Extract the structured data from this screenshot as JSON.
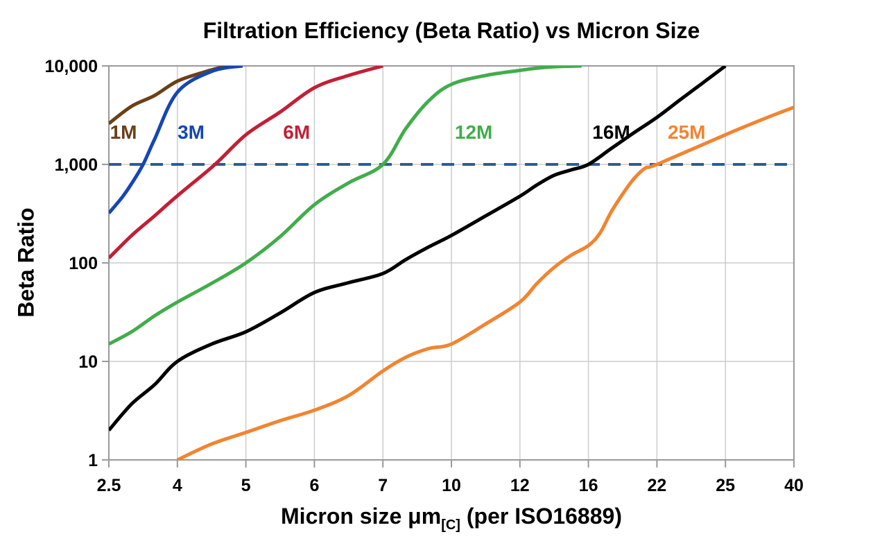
{
  "title": "Filtration Efficiency (Beta Ratio) vs Micron Size",
  "y_axis": {
    "title": "Beta Ratio",
    "scale": "log",
    "range": [
      1,
      10000
    ],
    "tick_values": [
      10000,
      1000,
      100,
      10,
      1
    ],
    "tick_labels": [
      "10,000",
      "1,000",
      "100",
      "10",
      "1"
    ]
  },
  "x_axis": {
    "title_prefix": "Micron size μm",
    "title_subscript": "[C]",
    "title_suffix": " (per ISO16889)",
    "spacing": "equal-interval-categorical",
    "tick_values": [
      2.5,
      4,
      5,
      6,
      7,
      10,
      12,
      16,
      22,
      25,
      40
    ],
    "tick_labels": [
      "2.5",
      "4",
      "5",
      "6",
      "7",
      "10",
      "12",
      "16",
      "22",
      "25",
      "40"
    ]
  },
  "colors": {
    "grid": "#CCCCCC",
    "frame": "#999999",
    "tick": "#999999",
    "reference_line": "#2D5D8E",
    "text": "#000000"
  },
  "chart_data": {
    "type": "line",
    "title": "Filtration Efficiency (Beta Ratio) vs Micron Size",
    "xlabel": "Micron size μm[C] (per ISO16889)",
    "ylabel": "Beta Ratio",
    "y_scale": "log",
    "ylim": [
      1,
      10000
    ],
    "grid": true,
    "legend": "inline-curve-labels",
    "x_ticks": [
      2.5,
      4,
      5,
      6,
      7,
      10,
      12,
      16,
      22,
      25,
      40
    ],
    "reference_line": {
      "value": 1000,
      "style": "dashed",
      "color": "#2D5D8E",
      "dash": [
        18,
        12
      ],
      "width": 4
    },
    "series": [
      {
        "name": "1M",
        "color": "#6B4016",
        "label": {
          "text": "1M",
          "x": 2.82,
          "y": 2150
        },
        "points": [
          [
            2.5,
            2600
          ],
          [
            3,
            3900
          ],
          [
            3.5,
            5000
          ],
          [
            4,
            7000
          ],
          [
            4.4,
            8700
          ],
          [
            4.72,
            10000
          ]
        ]
      },
      {
        "name": "3M",
        "color": "#1646B4",
        "label": {
          "text": "3M",
          "x": 4.2,
          "y": 2150
        },
        "points": [
          [
            2.5,
            320
          ],
          [
            2.8,
            470
          ],
          [
            3,
            640
          ],
          [
            3.25,
            1000
          ],
          [
            3.5,
            1800
          ],
          [
            4,
            5400
          ],
          [
            4.5,
            8800
          ],
          [
            4.95,
            10000
          ]
        ]
      },
      {
        "name": "6M",
        "color": "#C21F35",
        "label": {
          "text": "6M",
          "x": 5.74,
          "y": 2150
        },
        "points": [
          [
            2.5,
            112
          ],
          [
            3,
            190
          ],
          [
            3.5,
            300
          ],
          [
            4,
            480
          ],
          [
            4.55,
            1000
          ],
          [
            5,
            2000
          ],
          [
            5.5,
            3400
          ],
          [
            6,
            6000
          ],
          [
            6.5,
            8000
          ],
          [
            7,
            10000
          ]
        ]
      },
      {
        "name": "12M",
        "color": "#41AD4A",
        "label": {
          "text": "12M",
          "x": 10.65,
          "y": 2150
        },
        "points": [
          [
            2.5,
            15
          ],
          [
            3,
            20
          ],
          [
            3.5,
            29
          ],
          [
            4,
            40
          ],
          [
            4.5,
            62
          ],
          [
            5,
            100
          ],
          [
            5.5,
            185
          ],
          [
            6,
            390
          ],
          [
            6.5,
            650
          ],
          [
            7,
            1000
          ],
          [
            8,
            2300
          ],
          [
            9,
            4400
          ],
          [
            10,
            6500
          ],
          [
            11,
            8000
          ],
          [
            12,
            9000
          ],
          [
            13,
            9500
          ],
          [
            14,
            9800
          ],
          [
            15.6,
            10000
          ]
        ]
      },
      {
        "name": "16M",
        "color": "#000000",
        "label": {
          "text": "16M",
          "x": 18.0,
          "y": 2150
        },
        "points": [
          [
            2.5,
            2
          ],
          [
            3,
            3.7
          ],
          [
            3.5,
            5.8
          ],
          [
            4,
            10
          ],
          [
            4.5,
            15
          ],
          [
            5,
            20
          ],
          [
            5.5,
            31
          ],
          [
            6,
            50
          ],
          [
            6.5,
            63
          ],
          [
            7,
            78
          ],
          [
            8,
            108
          ],
          [
            9,
            145
          ],
          [
            10,
            190
          ],
          [
            11,
            300
          ],
          [
            12,
            475
          ],
          [
            13,
            620
          ],
          [
            14,
            775
          ],
          [
            15,
            880
          ],
          [
            16,
            1000
          ],
          [
            18,
            1450
          ],
          [
            20,
            2100
          ],
          [
            22,
            3000
          ],
          [
            23,
            4500
          ],
          [
            24,
            6700
          ],
          [
            25,
            10000
          ]
        ]
      },
      {
        "name": "25M",
        "color": "#F28430",
        "label": {
          "text": "25M",
          "x": 23.3,
          "y": 2150
        },
        "points": [
          [
            4,
            1
          ],
          [
            4.5,
            1.45
          ],
          [
            5,
            1.9
          ],
          [
            5.5,
            2.5
          ],
          [
            6,
            3.2
          ],
          [
            6.5,
            4.5
          ],
          [
            7,
            8
          ],
          [
            8,
            11
          ],
          [
            9,
            13.5
          ],
          [
            10,
            15
          ],
          [
            11,
            24
          ],
          [
            12,
            40
          ],
          [
            13,
            62
          ],
          [
            14,
            90
          ],
          [
            15,
            120
          ],
          [
            16,
            150
          ],
          [
            17,
            200
          ],
          [
            18,
            330
          ],
          [
            19,
            500
          ],
          [
            20,
            720
          ],
          [
            21,
            920
          ],
          [
            22,
            1000
          ],
          [
            25,
            2000
          ],
          [
            30,
            2500
          ],
          [
            35,
            3100
          ],
          [
            40,
            3800
          ]
        ]
      }
    ]
  }
}
